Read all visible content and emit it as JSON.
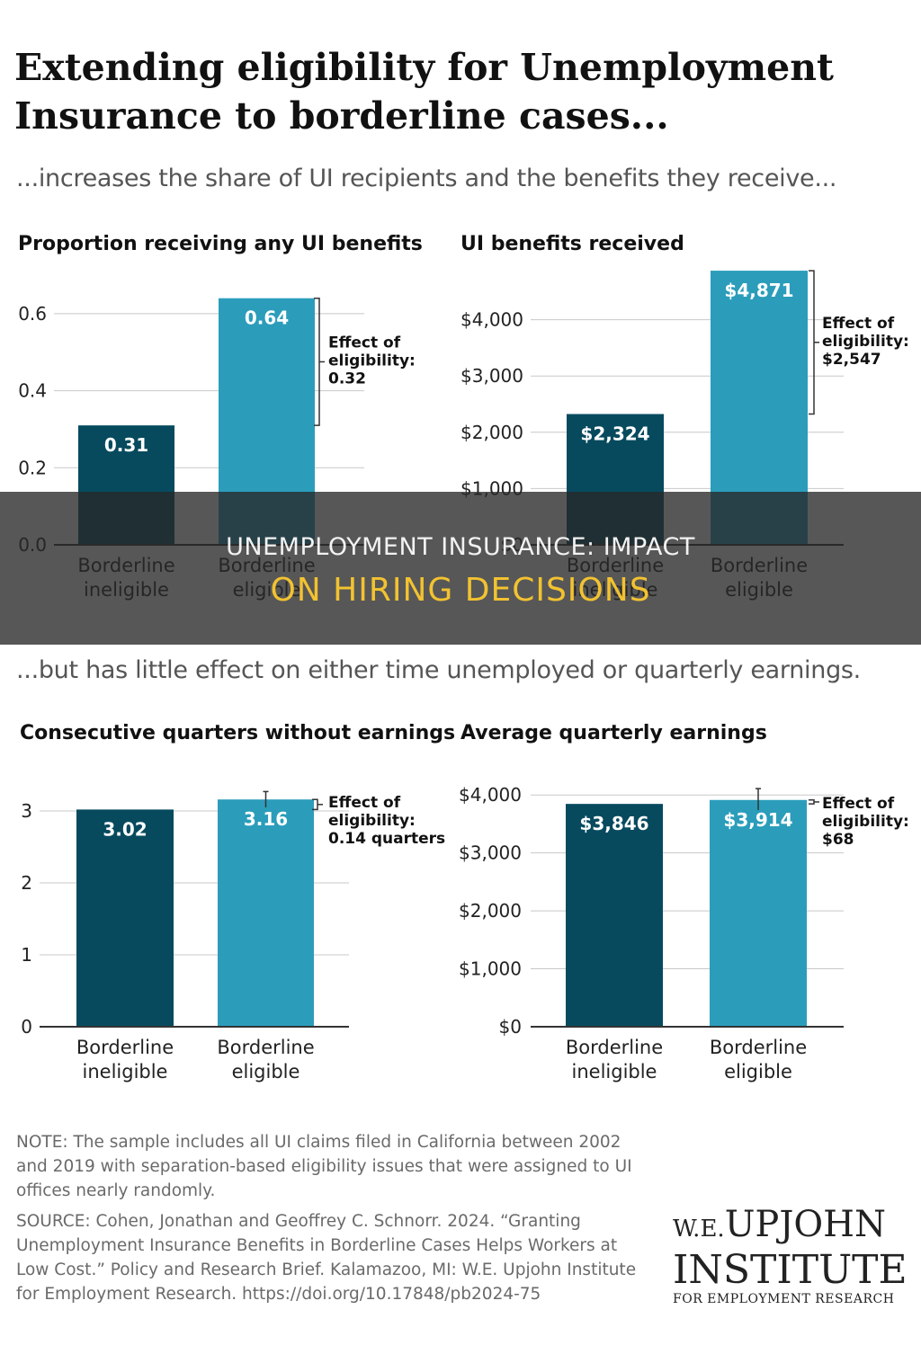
{
  "header": {
    "title": "Extending eligibility for Unemployment Insurance to borderline cases...",
    "subtitle_top": "...increases the share of UI recipients and the benefits they receive...",
    "subtitle_bottom": "...but has little effect on either time unemployed or quarterly earnings."
  },
  "colors": {
    "ineligible": "#074a5e",
    "eligible": "#2b9dbb"
  },
  "chart_data": [
    {
      "type": "bar",
      "title": "Proportion receiving any UI benefits",
      "categories": [
        "Borderline ineligible",
        "Borderline eligible"
      ],
      "values": [
        0.31,
        0.64
      ],
      "value_labels": [
        "0.31",
        "0.64"
      ],
      "ylim": [
        0,
        0.7
      ],
      "yticks": [
        0,
        0.2,
        0.4,
        0.6
      ],
      "ytick_labels": [
        "0.0",
        "0.2",
        "0.4",
        "0.6"
      ],
      "annotation": [
        "Effect of",
        "eligibility:",
        "0.32"
      ],
      "annotation_style": "bracket"
    },
    {
      "type": "bar",
      "title": "UI benefits received",
      "categories": [
        "Borderline ineligible",
        "Borderline eligible"
      ],
      "values": [
        2324,
        4871
      ],
      "value_labels": [
        "$2,324",
        "$4,871"
      ],
      "ylim": [
        0,
        5000
      ],
      "yticks": [
        0,
        1000,
        2000,
        3000,
        4000
      ],
      "ytick_labels": [
        "$0",
        "$1,000",
        "$2,000",
        "$3,000",
        "$4,000"
      ],
      "annotation": [
        "Effect of",
        "eligibility:",
        "$2,547"
      ],
      "annotation_style": "bracket"
    },
    {
      "type": "bar",
      "title": "Consecutive quarters without earnings",
      "categories": [
        "Borderline ineligible",
        "Borderline eligible"
      ],
      "values": [
        3.02,
        3.16
      ],
      "value_labels": [
        "3.02",
        "3.16"
      ],
      "ylim": [
        0,
        3.5
      ],
      "yticks": [
        0,
        1,
        2,
        3
      ],
      "ytick_labels": [
        "0",
        "1",
        "2",
        "3"
      ],
      "error_bar": [
        3.05,
        3.27
      ],
      "annotation": [
        "Effect of",
        "eligibility:",
        "0.14 quarters"
      ],
      "annotation_style": "bracket"
    },
    {
      "type": "bar",
      "title": "Average quarterly earnings",
      "categories": [
        "Borderline ineligible",
        "Borderline eligible"
      ],
      "values": [
        3846,
        3914
      ],
      "value_labels": [
        "$3,846",
        "$3,914"
      ],
      "ylim": [
        0,
        4500
      ],
      "yticks": [
        0,
        1000,
        2000,
        3000,
        4000
      ],
      "ytick_labels": [
        "$0",
        "$1,000",
        "$2,000",
        "$3,000",
        "$4,000"
      ],
      "error_bar": [
        3740,
        4110
      ],
      "annotation": [
        "Effect of",
        "eligibility:",
        "$68"
      ],
      "annotation_style": "bracket"
    }
  ],
  "overlay": {
    "line1": "UNEMPLOYMENT INSURANCE: IMPACT",
    "line2": "ON HIRING DECISIONS"
  },
  "footer": {
    "note": "NOTE: The sample includes all UI claims filed in California between 2002 and 2019 with separation-based eligibility issues that were assigned to UI offices nearly randomly.",
    "source": "SOURCE: Cohen, Jonathan and Geoffrey C. Schnorr. 2024. “Granting Unemployment Insurance Benefits in Borderline Cases Helps Workers at Low Cost.” Policy and Research Brief. Kalamazoo, MI: W.E. Upjohn Institute for Employment Research. https://doi.org/10.17848/pb2024-75"
  },
  "logo": {
    "we": "W.E.",
    "upjohn": "UPJOHN",
    "institute": "INSTITUTE",
    "tagline": "FOR EMPLOYMENT RESEARCH"
  }
}
